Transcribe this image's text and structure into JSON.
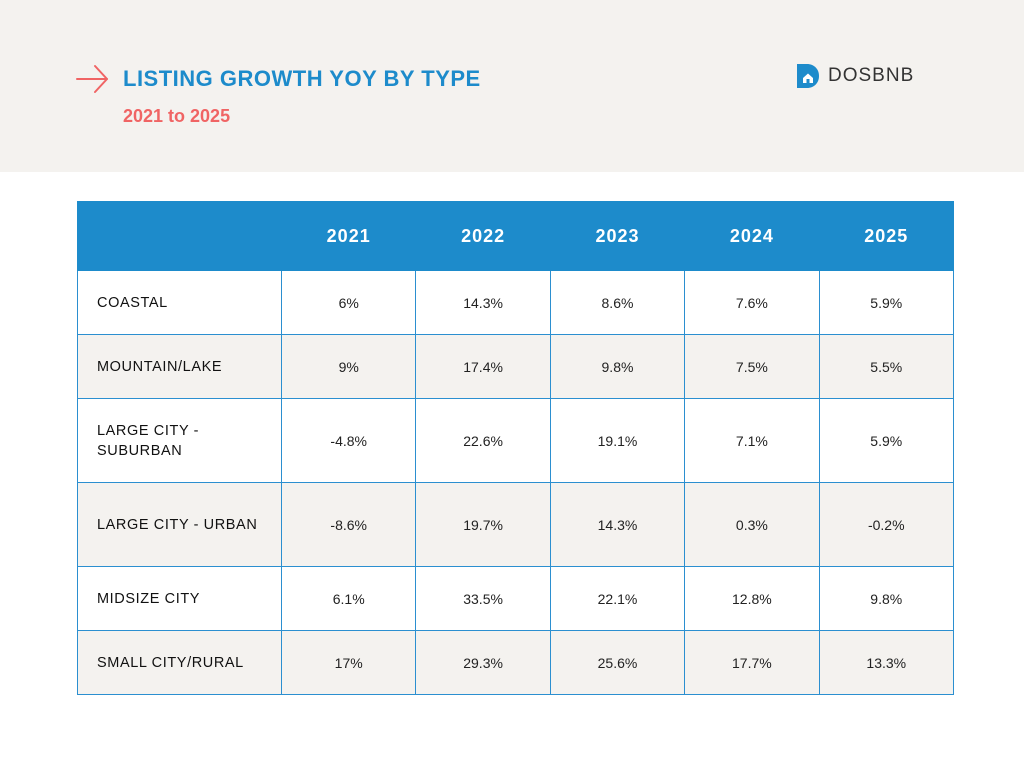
{
  "header": {
    "title": "LISTING GROWTH YOY BY TYPE",
    "subtitle": "2021 to 2025",
    "brand": "DOSBNB"
  },
  "colors": {
    "accent_blue": "#1d8bcb",
    "accent_red": "#f06464",
    "band_bg": "#f4f2ef"
  },
  "icons": {
    "title": "arrow-right-icon",
    "brand": "dosbnb-logo-icon"
  },
  "chart_data": {
    "type": "table",
    "title": "LISTING GROWTH YOY BY TYPE",
    "subtitle": "2021 to 2025",
    "columns": [
      "2021",
      "2022",
      "2023",
      "2024",
      "2025"
    ],
    "rows": [
      {
        "label": "COASTAL",
        "values": [
          "6%",
          "14.3%",
          "8.6%",
          "7.6%",
          "5.9%"
        ]
      },
      {
        "label": "MOUNTAIN/LAKE",
        "values": [
          "9%",
          "17.4%",
          "9.8%",
          "7.5%",
          "5.5%"
        ]
      },
      {
        "label": "LARGE CITY - SUBURBAN",
        "values": [
          "-4.8%",
          "22.6%",
          "19.1%",
          "7.1%",
          "5.9%"
        ]
      },
      {
        "label": "LARGE CITY - URBAN",
        "values": [
          "-8.6%",
          "19.7%",
          "14.3%",
          "0.3%",
          "-0.2%"
        ]
      },
      {
        "label": "MIDSIZE CITY",
        "values": [
          "6.1%",
          "33.5%",
          "22.1%",
          "12.8%",
          "9.8%"
        ]
      },
      {
        "label": "SMALL CITY/RURAL",
        "values": [
          "17%",
          "29.3%",
          "25.6%",
          "17.7%",
          "13.3%"
        ]
      }
    ]
  }
}
